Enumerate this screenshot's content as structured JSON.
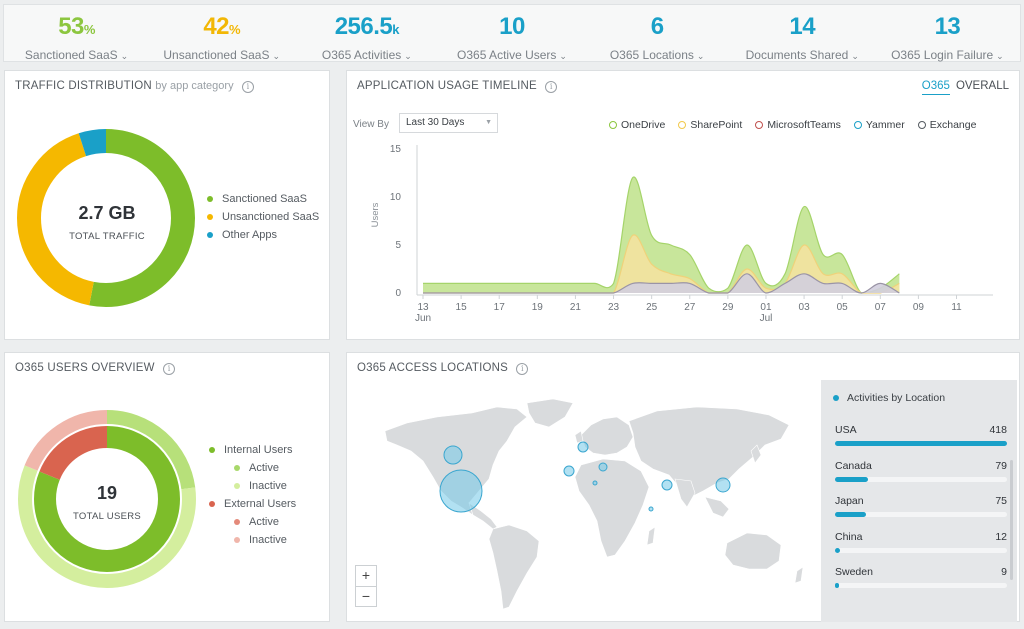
{
  "kpis": [
    {
      "value": "53",
      "unit": "%",
      "label": "Sanctioned SaaS",
      "color": "#8cc63f"
    },
    {
      "value": "42",
      "unit": "%",
      "label": "Unsanctioned SaaS",
      "color": "#f2b705"
    },
    {
      "value": "256.5",
      "unit": "k",
      "label": "O365 Activities",
      "color": "#1aa0c8"
    },
    {
      "value": "10",
      "unit": "",
      "label": "O365 Active Users",
      "color": "#1aa0c8"
    },
    {
      "value": "6",
      "unit": "",
      "label": "O365 Locations",
      "color": "#1aa0c8"
    },
    {
      "value": "14",
      "unit": "",
      "label": "Documents Shared",
      "color": "#1aa0c8"
    },
    {
      "value": "13",
      "unit": "",
      "label": "O365 Login Failure",
      "color": "#1aa0c8"
    }
  ],
  "traffic": {
    "title": "TRAFFIC DISTRIBUTION",
    "subtitle": "by app category",
    "center_value": "2.7 GB",
    "center_label": "TOTAL TRAFFIC",
    "legend": [
      {
        "label": "Sanctioned SaaS",
        "color": "#7dbd2a"
      },
      {
        "label": "Unsanctioned SaaS",
        "color": "#f5b800"
      },
      {
        "label": "Other Apps",
        "color": "#1aa0c8"
      }
    ]
  },
  "timeline": {
    "title": "APPLICATION USAGE TIMELINE",
    "tabs": [
      "O365",
      "OVERALL"
    ],
    "view_by_label": "View By",
    "view_by_value": "Last 30 Days",
    "legend": [
      {
        "label": "OneDrive",
        "color": "#8cc63f"
      },
      {
        "label": "SharePoint",
        "color": "#f2c94c"
      },
      {
        "label": "MicrosoftTeams",
        "color": "#c0504d"
      },
      {
        "label": "Yammer",
        "color": "#1aa0c8"
      },
      {
        "label": "Exchange",
        "color": "#555b61"
      }
    ],
    "ylabel": "Users",
    "yticks": [
      "0",
      "5",
      "10",
      "15"
    ],
    "xticks": [
      "13",
      "15",
      "17",
      "19",
      "21",
      "23",
      "25",
      "27",
      "29",
      "01",
      "03",
      "05",
      "07",
      "09",
      "11"
    ],
    "month_labels": [
      "Jun",
      "Jul"
    ]
  },
  "chart_data": {
    "type": "area",
    "x": [
      "Jun 13",
      "Jun 14",
      "Jun 15",
      "Jun 16",
      "Jun 17",
      "Jun 18",
      "Jun 19",
      "Jun 20",
      "Jun 21",
      "Jun 22",
      "Jun 23",
      "Jun 24",
      "Jun 25",
      "Jun 26",
      "Jun 27",
      "Jun 28",
      "Jun 29",
      "Jun 30",
      "Jul 01",
      "Jul 02",
      "Jul 03",
      "Jul 04",
      "Jul 05",
      "Jul 06",
      "Jul 07",
      "Jul 08"
    ],
    "series": [
      {
        "name": "OneDrive",
        "values": [
          1,
          1,
          1,
          1,
          1,
          1,
          1,
          1,
          1,
          1,
          1,
          12,
          6,
          5,
          4,
          0.5,
          0.5,
          5,
          1,
          2,
          9,
          4,
          4,
          0,
          0.5,
          2
        ]
      },
      {
        "name": "SharePoint",
        "values": [
          0,
          0,
          0,
          0,
          0,
          0,
          0,
          0,
          0,
          0,
          0,
          6,
          3,
          2,
          1.5,
          0,
          0,
          2.5,
          0.5,
          1,
          5,
          2,
          2,
          0,
          0,
          1
        ]
      },
      {
        "name": "MicrosoftTeams",
        "values": [
          0,
          0,
          0,
          0,
          0,
          0,
          0,
          0,
          0,
          0,
          0,
          0,
          0,
          0,
          0,
          0,
          0,
          0,
          0,
          0,
          0,
          0,
          0,
          0,
          0,
          0
        ]
      },
      {
        "name": "Yammer",
        "values": [
          0,
          0,
          0,
          0,
          0,
          0,
          0,
          0,
          0,
          0,
          0,
          0,
          0,
          0,
          0,
          0,
          0,
          0,
          0,
          0,
          0,
          0,
          0,
          0,
          0,
          0
        ]
      },
      {
        "name": "Exchange",
        "values": [
          0,
          0,
          0,
          0,
          0,
          0,
          0,
          0,
          0,
          0,
          0,
          1,
          1,
          1,
          1,
          0,
          0,
          2,
          0,
          1,
          2,
          1,
          1,
          0,
          1,
          0
        ]
      }
    ],
    "ylabel": "Users",
    "ylim": [
      0,
      15
    ]
  },
  "users": {
    "title": "O365 USERS OVERVIEW",
    "center_value": "19",
    "center_label": "TOTAL USERS",
    "legend": [
      {
        "label": "Internal Users",
        "color": "#7dbd2a",
        "indent": false
      },
      {
        "label": "Active",
        "color": "#a8d86a",
        "indent": true
      },
      {
        "label": "Inactive",
        "color": "#d4ee9e",
        "indent": true
      },
      {
        "label": "External Users",
        "color": "#d9644f",
        "indent": false
      },
      {
        "label": "Active",
        "color": "#e48a7a",
        "indent": true
      },
      {
        "label": "Inactive",
        "color": "#f0b6ab",
        "indent": true
      }
    ]
  },
  "locations": {
    "title": "O365 ACCESS LOCATIONS",
    "panel_title": "Activities by Location",
    "zoom_in": "+",
    "zoom_out": "−",
    "rows": [
      {
        "country": "USA",
        "value": "418",
        "fraction": 1.0
      },
      {
        "country": "Canada",
        "value": "79",
        "fraction": 0.19
      },
      {
        "country": "Japan",
        "value": "75",
        "fraction": 0.18
      },
      {
        "country": "China",
        "value": "12",
        "fraction": 0.03
      },
      {
        "country": "Sweden",
        "value": "9",
        "fraction": 0.02
      }
    ]
  }
}
